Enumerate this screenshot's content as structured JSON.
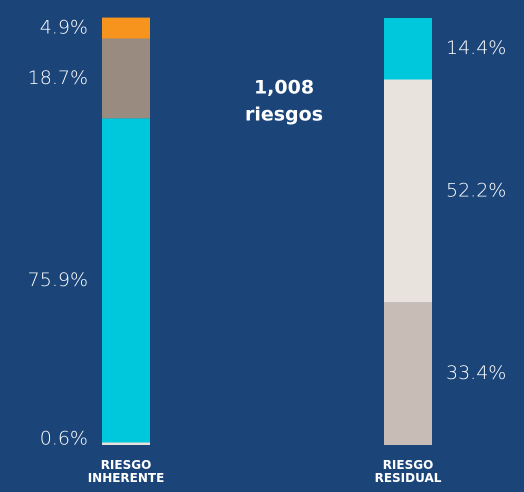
{
  "chart_data": {
    "type": "stacked_bar",
    "annotation": [
      "1,008",
      "riesgos"
    ],
    "ylim": [
      0,
      100
    ],
    "bars": [
      {
        "label": "RIESGO INHERENTE",
        "side": "left",
        "values": [
          0.6,
          75.9,
          18.7,
          4.9
        ],
        "value_labels": [
          "0.6%",
          "75.9%",
          "18.7%",
          "4.9%"
        ],
        "colors": [
          "#e6e1dc",
          "#00c8dc",
          "#9a8b80",
          "#f7941d"
        ]
      },
      {
        "label": "RIESGO RESIDUAL",
        "side": "right",
        "values": [
          33.4,
          52.2,
          14.4
        ],
        "value_labels": [
          "33.4%",
          "52.2%",
          "14.4%"
        ],
        "colors": [
          "#c8bcb6",
          "#e8e3dd",
          "#00c8dc"
        ]
      }
    ]
  }
}
